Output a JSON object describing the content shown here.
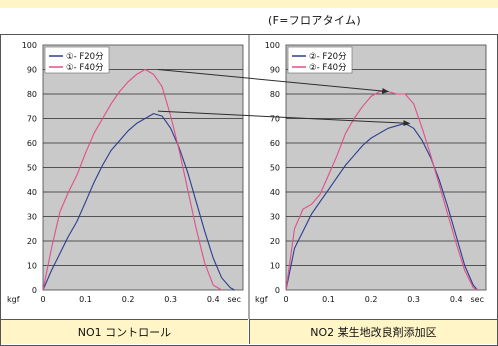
{
  "header_note": "(F=フロアタイム)",
  "colors": {
    "f20": "#2a3d8f",
    "f40": "#e0508a",
    "plot_bg": "#c9c9c9",
    "grid": "#2a2a2a",
    "arrow": "#2d2d2d",
    "caption_bg": "#fff5c6"
  },
  "chart_data": [
    {
      "type": "line",
      "caption": "NO1 コントロール",
      "xlabel": "sec",
      "ylabel": "kgf",
      "xlim": [
        0,
        0.47
      ],
      "ylim": [
        0,
        100
      ],
      "x_ticks": [
        "0",
        "0.1",
        "0.2",
        "0.3",
        "0.4"
      ],
      "y_ticks": [
        "0",
        "10",
        "20",
        "30",
        "40",
        "50",
        "60",
        "70",
        "80",
        "90",
        "100"
      ],
      "grid": "horizontal",
      "legend_position": "top-left",
      "series": [
        {
          "name": "①- F20分",
          "color_key": "f20",
          "x": [
            0,
            0.02,
            0.04,
            0.06,
            0.08,
            0.1,
            0.12,
            0.14,
            0.16,
            0.18,
            0.2,
            0.22,
            0.24,
            0.26,
            0.28,
            0.3,
            0.32,
            0.34,
            0.36,
            0.38,
            0.4,
            0.42,
            0.44,
            0.45
          ],
          "y": [
            0,
            8,
            15,
            22,
            28,
            36,
            44,
            51,
            57,
            61,
            65,
            68,
            70,
            72,
            71,
            66,
            58,
            48,
            36,
            24,
            13,
            5,
            1,
            0
          ]
        },
        {
          "name": "①- F40分",
          "color_key": "f40",
          "x": [
            0,
            0.02,
            0.04,
            0.06,
            0.08,
            0.1,
            0.12,
            0.14,
            0.16,
            0.18,
            0.2,
            0.22,
            0.24,
            0.26,
            0.28,
            0.3,
            0.32,
            0.34,
            0.36,
            0.38,
            0.4,
            0.42
          ],
          "y": [
            0,
            17,
            32,
            40,
            47,
            56,
            64,
            70,
            76,
            81,
            85,
            88,
            90,
            88,
            83,
            71,
            57,
            41,
            25,
            11,
            2,
            0
          ]
        }
      ]
    },
    {
      "type": "line",
      "caption": "NO2 某生地改良剤添加区",
      "xlabel": "sec",
      "ylabel": "kgf",
      "xlim": [
        0,
        0.47
      ],
      "ylim": [
        0,
        100
      ],
      "x_ticks": [
        "0",
        "0.1",
        "0.2",
        "0.3",
        "0.4"
      ],
      "y_ticks": [
        "0",
        "10",
        "20",
        "30",
        "40",
        "50",
        "60",
        "70",
        "80",
        "90",
        "100"
      ],
      "grid": "horizontal",
      "legend_position": "top-left",
      "series": [
        {
          "name": "②- F20分",
          "color_key": "f20",
          "x": [
            0,
            0.02,
            0.04,
            0.06,
            0.08,
            0.1,
            0.12,
            0.14,
            0.16,
            0.18,
            0.2,
            0.22,
            0.24,
            0.26,
            0.28,
            0.3,
            0.32,
            0.34,
            0.36,
            0.38,
            0.4,
            0.42,
            0.44,
            0.45
          ],
          "y": [
            0,
            17,
            24,
            31,
            36,
            41,
            46,
            51,
            55,
            59,
            62,
            64,
            66,
            67,
            68,
            66,
            61,
            54,
            45,
            34,
            22,
            10,
            2,
            0
          ]
        },
        {
          "name": "②- F40分",
          "color_key": "f40",
          "x": [
            0,
            0.02,
            0.04,
            0.06,
            0.08,
            0.1,
            0.12,
            0.14,
            0.16,
            0.18,
            0.2,
            0.22,
            0.24,
            0.26,
            0.28,
            0.3,
            0.32,
            0.34,
            0.36,
            0.38,
            0.4,
            0.42,
            0.44,
            0.45
          ],
          "y": [
            0,
            25,
            33,
            35,
            39,
            47,
            55,
            64,
            70,
            75,
            79,
            81,
            81,
            80,
            80,
            76,
            66,
            55,
            43,
            31,
            19,
            8,
            1,
            0
          ]
        }
      ]
    }
  ],
  "arrows": [
    {
      "from": [
        0,
        0.27,
        90
      ],
      "to": [
        1,
        0.24,
        81
      ]
    },
    {
      "from": [
        0,
        0.27,
        73
      ],
      "to": [
        1,
        0.29,
        68
      ]
    }
  ]
}
